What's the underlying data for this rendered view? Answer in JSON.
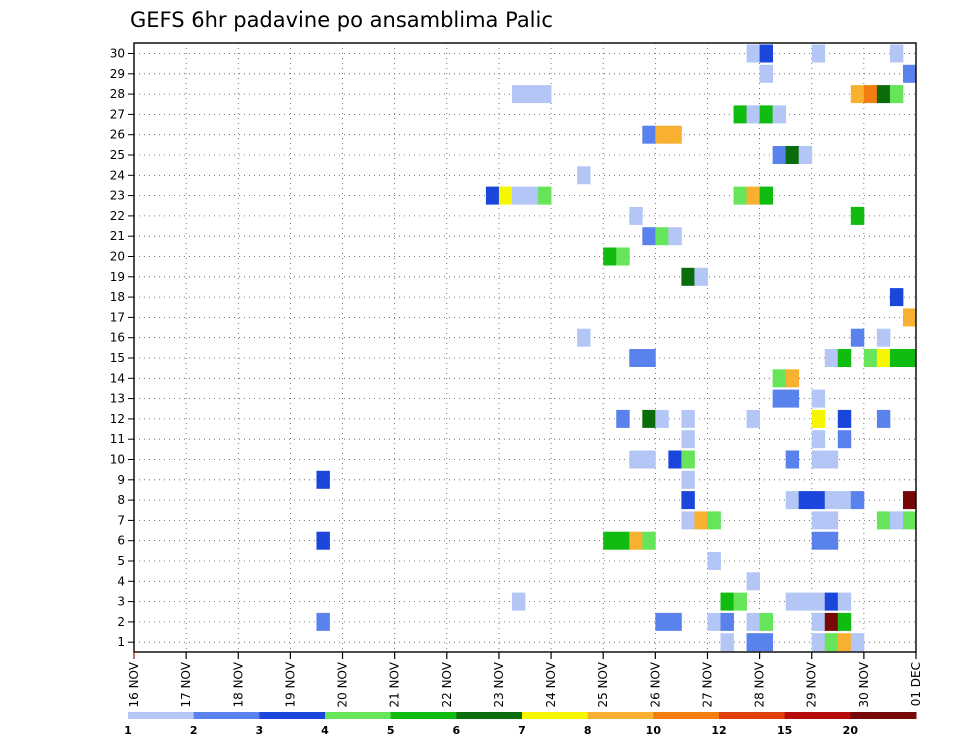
{
  "chart_data": {
    "type": "heatmap",
    "title": "GEFS 6hr padavine po ansamblima Palic",
    "xlabel": "",
    "ylabel": "",
    "x_ticks": [
      "16 NOV",
      "17 NOV",
      "18 NOV",
      "19 NOV",
      "20 NOV",
      "21 NOV",
      "22 NOV",
      "23 NOV",
      "24 NOV",
      "25 NOV",
      "26 NOV",
      "27 NOV",
      "28 NOV",
      "29 NOV",
      "30 NOV",
      "01 DEC"
    ],
    "x_range": [
      0,
      15
    ],
    "y_ticks": [
      1,
      2,
      3,
      4,
      5,
      6,
      7,
      8,
      9,
      10,
      11,
      12,
      13,
      14,
      15,
      16,
      17,
      18,
      19,
      20,
      21,
      22,
      23,
      24,
      25,
      26,
      27,
      28,
      29,
      30
    ],
    "y_range": [
      1,
      30
    ],
    "cell_step_days": 0.25,
    "grid": true,
    "colorbar": {
      "levels": [
        "1",
        "2",
        "3",
        "4",
        "5",
        "6",
        "7",
        "8",
        "10",
        "12",
        "15",
        "20"
      ],
      "colors": [
        "#b4c6f6",
        "#5a82ec",
        "#1a46dc",
        "#66e45a",
        "#10bc10",
        "#0a6c0a",
        "#f6f600",
        "#f8b030",
        "#f27e10",
        "#e0400c",
        "#b80c0c",
        "#780808"
      ]
    },
    "cells": [
      [
        3.5,
        2,
        1
      ],
      [
        3.5,
        6,
        2
      ],
      [
        3.5,
        9,
        2
      ],
      [
        6.75,
        23,
        2
      ],
      [
        7,
        23,
        6
      ],
      [
        7.25,
        23,
        0
      ],
      [
        7.5,
        23,
        0
      ],
      [
        7.75,
        23,
        3
      ],
      [
        7.25,
        28,
        0
      ],
      [
        7.5,
        28,
        0
      ],
      [
        7.75,
        28,
        0
      ],
      [
        7.25,
        3,
        0
      ],
      [
        8.5,
        24,
        0
      ],
      [
        8.5,
        16,
        0
      ],
      [
        9,
        20,
        4
      ],
      [
        9.25,
        20,
        3
      ],
      [
        9,
        6,
        4
      ],
      [
        9.25,
        6,
        4
      ],
      [
        9.5,
        6,
        7
      ],
      [
        9.75,
        6,
        3
      ],
      [
        9.5,
        22,
        0
      ],
      [
        9.5,
        15,
        1
      ],
      [
        9.75,
        15,
        1
      ],
      [
        9.25,
        12,
        1
      ],
      [
        9.5,
        10,
        0
      ],
      [
        9.75,
        10,
        0
      ],
      [
        9.75,
        26,
        1
      ],
      [
        10,
        26,
        7
      ],
      [
        10.25,
        26,
        7
      ],
      [
        9.75,
        21,
        1
      ],
      [
        10,
        21,
        3
      ],
      [
        10.25,
        21,
        0
      ],
      [
        9.75,
        12,
        5
      ],
      [
        10,
        12,
        0
      ],
      [
        10.25,
        10,
        2
      ],
      [
        10.5,
        10,
        3
      ],
      [
        10,
        2,
        1
      ],
      [
        10.25,
        2,
        1
      ],
      [
        10.5,
        19,
        5
      ],
      [
        10.75,
        19,
        0
      ],
      [
        10.5,
        12,
        0
      ],
      [
        10.5,
        11,
        0
      ],
      [
        10.5,
        9,
        0
      ],
      [
        10.5,
        8,
        2
      ],
      [
        10.5,
        7,
        0
      ],
      [
        10.75,
        7,
        7
      ],
      [
        11,
        7,
        3
      ],
      [
        11,
        5,
        0
      ],
      [
        11,
        2,
        0
      ],
      [
        11.25,
        2,
        1
      ],
      [
        11.25,
        1,
        0
      ],
      [
        11.25,
        3,
        4
      ],
      [
        11.5,
        3,
        3
      ],
      [
        11.5,
        27,
        4
      ],
      [
        11.75,
        27,
        0
      ],
      [
        12,
        27,
        4
      ],
      [
        12.25,
        27,
        0
      ],
      [
        11.5,
        23,
        3
      ],
      [
        11.75,
        23,
        7
      ],
      [
        12,
        23,
        4
      ],
      [
        11.75,
        30,
        0
      ],
      [
        12,
        30,
        2
      ],
      [
        12,
        29,
        0
      ],
      [
        11.75,
        12,
        0
      ],
      [
        11.75,
        4,
        0
      ],
      [
        11.75,
        2,
        0
      ],
      [
        12,
        2,
        3
      ],
      [
        11.75,
        1,
        1
      ],
      [
        12,
        1,
        1
      ],
      [
        12.25,
        25,
        1
      ],
      [
        12.5,
        25,
        5
      ],
      [
        12.75,
        25,
        0
      ],
      [
        12.25,
        14,
        3
      ],
      [
        12.5,
        14,
        7
      ],
      [
        12.25,
        13,
        1
      ],
      [
        12.5,
        13,
        1
      ],
      [
        12.5,
        10,
        1
      ],
      [
        12.5,
        8,
        0
      ],
      [
        12.75,
        8,
        2
      ],
      [
        13,
        8,
        2
      ],
      [
        13.25,
        8,
        0
      ],
      [
        13.5,
        8,
        0
      ],
      [
        13.75,
        8,
        1
      ],
      [
        12.5,
        3,
        0
      ],
      [
        12.75,
        3,
        0
      ],
      [
        13,
        3,
        0
      ],
      [
        13.25,
        3,
        2
      ],
      [
        13.5,
        3,
        0
      ],
      [
        13,
        30,
        0
      ],
      [
        13,
        13,
        0
      ],
      [
        13,
        12,
        6
      ],
      [
        13,
        11,
        0
      ],
      [
        13,
        10,
        0
      ],
      [
        13.25,
        10,
        0
      ],
      [
        13,
        7,
        0
      ],
      [
        13.25,
        7,
        0
      ],
      [
        13,
        6,
        1
      ],
      [
        13.25,
        6,
        1
      ],
      [
        13,
        2,
        0
      ],
      [
        13.25,
        2,
        11
      ],
      [
        13.5,
        2,
        4
      ],
      [
        13,
        1,
        0
      ],
      [
        13.25,
        1,
        3
      ],
      [
        13.5,
        1,
        7
      ],
      [
        13.75,
        1,
        0
      ],
      [
        13.25,
        15,
        0
      ],
      [
        13.5,
        15,
        4
      ],
      [
        13.5,
        12,
        2
      ],
      [
        13.5,
        11,
        1
      ],
      [
        13.75,
        22,
        4
      ],
      [
        13.75,
        28,
        7
      ],
      [
        14,
        28,
        8
      ],
      [
        14.25,
        28,
        5
      ],
      [
        14.5,
        28,
        3
      ],
      [
        13.75,
        16,
        1
      ],
      [
        14.25,
        16,
        0
      ],
      [
        14,
        15,
        3
      ],
      [
        14.25,
        15,
        6
      ],
      [
        14.5,
        15,
        4
      ],
      [
        14.75,
        15,
        4
      ],
      [
        14.25,
        12,
        1
      ],
      [
        14.25,
        7,
        3
      ],
      [
        14.5,
        7,
        0
      ],
      [
        14.75,
        7,
        3
      ],
      [
        14.5,
        30,
        0
      ],
      [
        14.75,
        29,
        1
      ],
      [
        14.75,
        8,
        11
      ],
      [
        14.75,
        17,
        7
      ],
      [
        14.5,
        18,
        2
      ]
    ]
  }
}
